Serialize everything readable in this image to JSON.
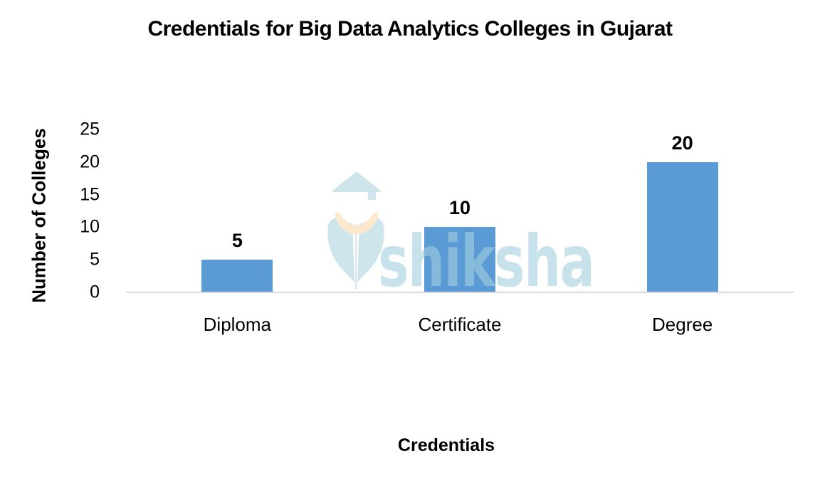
{
  "chart_data": {
    "type": "bar",
    "title": "Credentials for Big Data Analytics Colleges in Gujarat",
    "categories": [
      "Diploma",
      "Certificate",
      "Degree"
    ],
    "values": [
      5,
      10,
      20
    ],
    "xlabel": "Credentials",
    "ylabel": "Number of Colleges",
    "ylim": [
      0,
      25
    ],
    "yticks": [
      0,
      5,
      10,
      15,
      20,
      25
    ],
    "bar_color": "#5b9bd5",
    "axis_line_color": "#d9d9d9",
    "text_color": "#000000",
    "gridlines": false,
    "legend": "none",
    "data_labels": true
  },
  "watermark": {
    "text": "shiksha",
    "icon": "shiksha-graduate-pen-logo",
    "text_color": "rgba(164, 207, 224, 0.6)",
    "icon_blue": "#cfe5ec",
    "icon_peach": "#fbe8cd",
    "icon_white": "#ffffff"
  }
}
